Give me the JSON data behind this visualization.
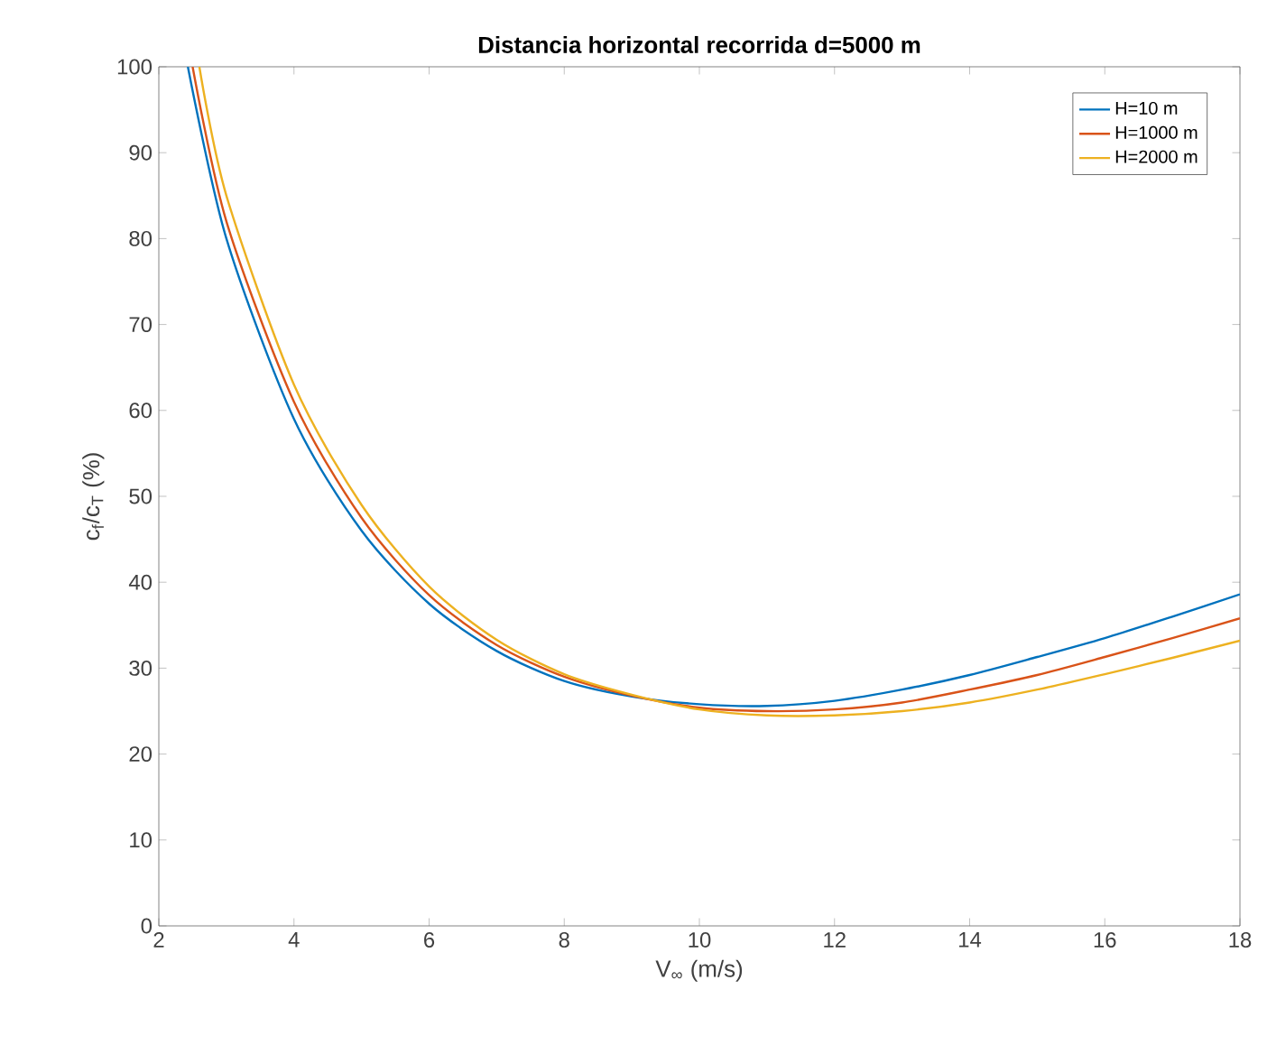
{
  "chart_data": {
    "type": "line",
    "title": "Distancia horizontal recorrida d=5000 m",
    "xlabel": "V$_{∞}$ (m/s)",
    "ylabel": "c$_{f}$/c$_{T}$ (%)",
    "xlim": [
      2,
      18
    ],
    "ylim": [
      0,
      100
    ],
    "xticks": [
      2,
      4,
      6,
      8,
      10,
      12,
      14,
      16,
      18
    ],
    "yticks": [
      0,
      10,
      20,
      30,
      40,
      50,
      60,
      70,
      80,
      90,
      100
    ],
    "legend": "top right",
    "grid": false,
    "line_style": "solid",
    "series": [
      {
        "name": "H=10 m",
        "color": "#0072bd",
        "x": [
          2.43,
          3,
          4,
          5,
          6,
          7,
          8,
          9,
          10,
          11,
          12,
          13,
          14,
          15,
          16,
          17,
          18
        ],
        "values": [
          100,
          80,
          59,
          46,
          37.5,
          32,
          28.5,
          26.7,
          25.8,
          25.6,
          26.2,
          27.5,
          29.2,
          31.3,
          33.5,
          36,
          38.6
        ]
      },
      {
        "name": "H=1000 m",
        "color": "#d95319",
        "x": [
          2.5,
          3,
          4,
          5,
          6,
          7,
          8,
          9,
          10,
          11,
          12,
          13,
          14,
          15,
          16,
          17,
          18
        ],
        "values": [
          100,
          82,
          61,
          47.5,
          38.5,
          32.7,
          29,
          26.8,
          25.4,
          25,
          25.2,
          26,
          27.5,
          29.2,
          31.3,
          33.5,
          35.8
        ]
      },
      {
        "name": "H=2000 m",
        "color": "#edb120",
        "x": [
          2.6,
          3,
          4,
          5,
          6,
          7,
          8,
          9,
          10,
          11,
          12,
          13,
          14,
          15,
          16,
          17,
          18
        ],
        "values": [
          100,
          85,
          63,
          49,
          39.5,
          33.3,
          29.3,
          26.9,
          25.2,
          24.5,
          24.5,
          25,
          26,
          27.5,
          29.3,
          31.2,
          33.2
        ]
      }
    ]
  }
}
